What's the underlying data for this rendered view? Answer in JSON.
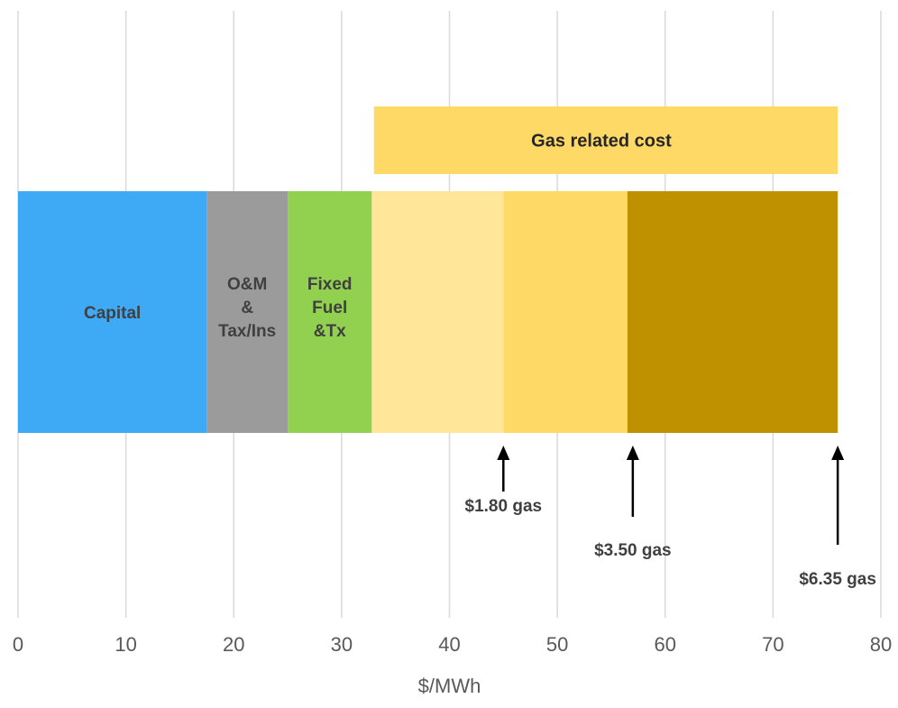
{
  "chart_data": {
    "type": "bar",
    "orientation": "horizontal",
    "stacked": true,
    "xlabel": "$/MWh",
    "xlim": [
      0,
      80
    ],
    "xticks": [
      "0",
      "10",
      "20",
      "30",
      "40",
      "50",
      "60",
      "70",
      "80"
    ],
    "grid": true,
    "segments": [
      {
        "label": "Capital",
        "start": 0,
        "end": 17.5,
        "color": "#3EA9F5"
      },
      {
        "label": "O&M\n&\nTax/Ins",
        "start": 17.5,
        "end": 25,
        "color": "#9B9B9B"
      },
      {
        "label": "Fixed\nFuel\n&Tx",
        "start": 25,
        "end": 32.8,
        "color": "#92D050"
      },
      {
        "label": "",
        "start": 32.8,
        "end": 45,
        "color": "#FFE699"
      },
      {
        "label": "",
        "start": 45,
        "end": 56.5,
        "color": "#FFD966"
      },
      {
        "label": "",
        "start": 56.5,
        "end": 76,
        "color": "#BF9000"
      }
    ],
    "band": {
      "label": "Gas related cost",
      "start": 33,
      "end": 76,
      "color": "#FFD966"
    },
    "markers": [
      {
        "label": "$1.80 gas",
        "value": 45
      },
      {
        "label": "$3.50 gas",
        "value": 57
      },
      {
        "label": "$6.35 gas",
        "value": 76
      }
    ]
  }
}
